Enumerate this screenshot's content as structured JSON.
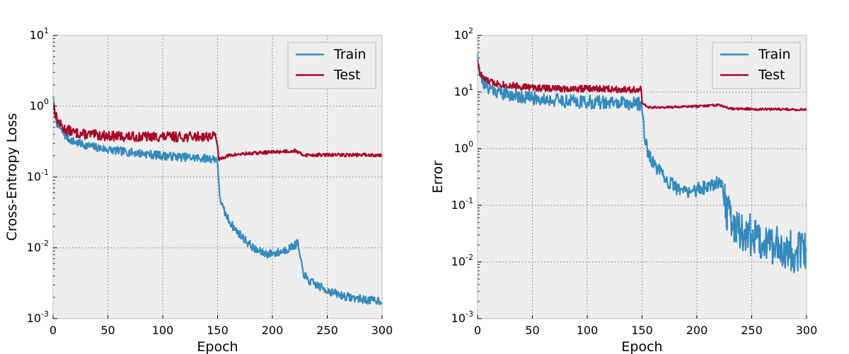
{
  "chart_data": [
    {
      "type": "line",
      "title": "",
      "xlabel": "Epoch",
      "ylabel": "Cross-Entropy Loss",
      "yscale": "log",
      "xlim": [
        0,
        300
      ],
      "ylim_exp": [
        -3,
        1
      ],
      "xticks": [
        "0",
        "50",
        "100",
        "150",
        "200",
        "250",
        "300"
      ],
      "yticks": [
        {
          "base": "10",
          "exp": "1"
        },
        {
          "base": "10",
          "exp": "0"
        },
        {
          "base": "10",
          "exp": "-1"
        },
        {
          "base": "10",
          "exp": "-2"
        },
        {
          "base": "10",
          "exp": "-3"
        }
      ],
      "grid": true,
      "legend_position": "top-right",
      "series": [
        {
          "name": "Train",
          "color": "#348ABD",
          "x": [
            0,
            1,
            2,
            3,
            5,
            8,
            10,
            15,
            20,
            30,
            40,
            50,
            60,
            75,
            100,
            125,
            148,
            149,
            150,
            151,
            152,
            155,
            160,
            165,
            175,
            185,
            195,
            205,
            215,
            220,
            223,
            224,
            225,
            228,
            232,
            240,
            250,
            260,
            270,
            280,
            290,
            300
          ],
          "y": [
            1.5,
            0.9,
            0.75,
            0.62,
            0.52,
            0.44,
            0.4,
            0.34,
            0.31,
            0.28,
            0.26,
            0.245,
            0.232,
            0.22,
            0.2,
            0.188,
            0.18,
            0.18,
            0.175,
            0.08,
            0.055,
            0.035,
            0.025,
            0.019,
            0.013,
            0.0092,
            0.0082,
            0.0085,
            0.0098,
            0.0108,
            0.0115,
            0.01,
            0.0075,
            0.0045,
            0.0035,
            0.003,
            0.0025,
            0.0022,
            0.002,
            0.0019,
            0.0018,
            0.0018
          ],
          "noise": 0.06,
          "noise_seed": 7
        },
        {
          "name": "Test",
          "color": "#A60628",
          "x": [
            0,
            1,
            2,
            3,
            5,
            8,
            10,
            15,
            20,
            30,
            40,
            50,
            75,
            100,
            125,
            148,
            149,
            150,
            151,
            155,
            160,
            170,
            180,
            190,
            200,
            210,
            215,
            220,
            222,
            224,
            226,
            230,
            240,
            250,
            260,
            270,
            280,
            290,
            300
          ],
          "y": [
            1.2,
            0.95,
            0.8,
            0.7,
            0.6,
            0.52,
            0.48,
            0.45,
            0.42,
            0.4,
            0.39,
            0.38,
            0.37,
            0.37,
            0.37,
            0.38,
            0.38,
            0.25,
            0.175,
            0.19,
            0.2,
            0.21,
            0.215,
            0.22,
            0.225,
            0.23,
            0.232,
            0.235,
            0.235,
            0.22,
            0.21,
            0.205,
            0.205,
            0.205,
            0.205,
            0.205,
            0.205,
            0.205,
            0.205
          ],
          "noise": 0.07,
          "noise_seed": 13,
          "noise_until_x": 150
        }
      ]
    },
    {
      "type": "line",
      "title": "",
      "xlabel": "Epoch",
      "ylabel": "Error",
      "yscale": "log",
      "xlim": [
        0,
        300
      ],
      "ylim_exp": [
        -3,
        2
      ],
      "xticks": [
        "0",
        "50",
        "100",
        "150",
        "200",
        "250",
        "300"
      ],
      "yticks": [
        {
          "base": "10",
          "exp": "2"
        },
        {
          "base": "10",
          "exp": "1"
        },
        {
          "base": "10",
          "exp": "0"
        },
        {
          "base": "10",
          "exp": "-1"
        },
        {
          "base": "10",
          "exp": "-2"
        },
        {
          "base": "10",
          "exp": "-3"
        }
      ],
      "grid": true,
      "legend_position": "top-right",
      "series": [
        {
          "name": "Train",
          "color": "#348ABD",
          "x": [
            0,
            1,
            2,
            4,
            6,
            10,
            15,
            20,
            30,
            40,
            50,
            60,
            75,
            100,
            125,
            148,
            149,
            150,
            152,
            155,
            160,
            165,
            170,
            175,
            185,
            195,
            205,
            215,
            220,
            223,
            225,
            228,
            232,
            240,
            250,
            260,
            270,
            280,
            290,
            300
          ],
          "y": [
            55,
            30,
            22,
            17,
            14,
            12,
            11,
            10,
            9,
            8.3,
            7.8,
            7.5,
            7.1,
            6.7,
            6.4,
            6.2,
            6.2,
            5.0,
            2.0,
            0.9,
            0.55,
            0.42,
            0.3,
            0.25,
            0.18,
            0.18,
            0.2,
            0.24,
            0.27,
            0.25,
            0.12,
            0.07,
            0.05,
            0.035,
            0.03,
            0.025,
            0.02,
            0.017,
            0.015,
            0.014
          ],
          "noise": 0.12,
          "noise_seed": 21,
          "noise_growth_after_x": 225,
          "noise_after": 0.38
        },
        {
          "name": "Test",
          "color": "#A60628",
          "x": [
            0,
            1,
            2,
            4,
            6,
            10,
            15,
            20,
            30,
            40,
            50,
            75,
            100,
            125,
            148,
            149,
            150,
            155,
            160,
            175,
            200,
            215,
            220,
            224,
            230,
            250,
            275,
            300
          ],
          "y": [
            40,
            28,
            22,
            19,
            17,
            15.5,
            14.5,
            14,
            13,
            12.5,
            12,
            11.5,
            11.5,
            11.3,
            11.0,
            11.0,
            6.5,
            5.4,
            5.3,
            5.4,
            5.6,
            5.8,
            5.9,
            5.5,
            5.1,
            5.0,
            4.95,
            4.9
          ],
          "noise": 0.06,
          "noise_seed": 33,
          "noise_until_x": 150
        }
      ]
    }
  ]
}
